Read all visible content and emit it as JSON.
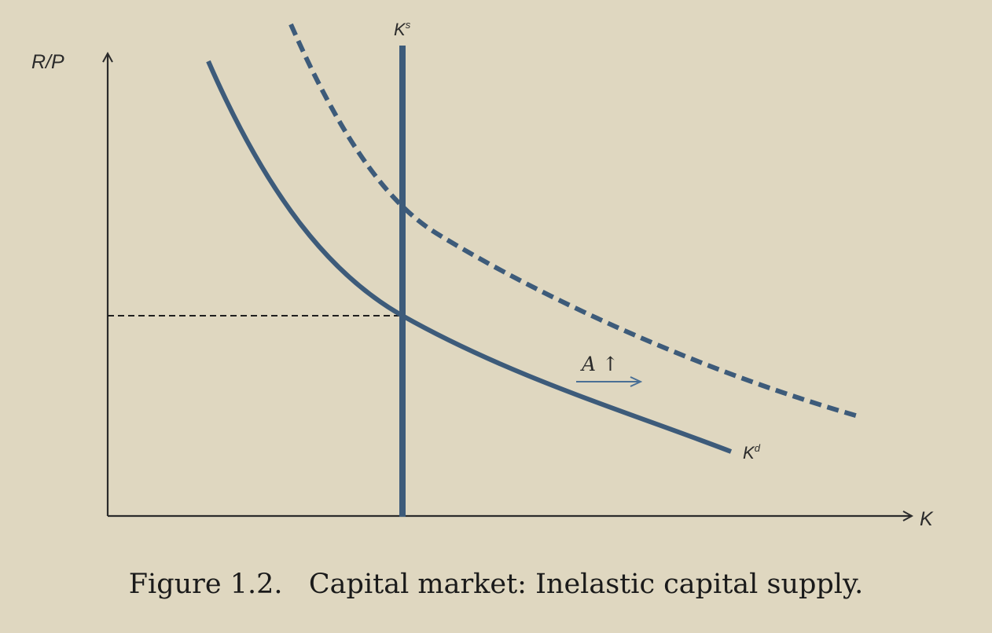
{
  "axes": {
    "y_label": "R/P",
    "x_label": "K"
  },
  "curves": {
    "supply_label_base": "K",
    "supply_label_sup": "s",
    "demand_label_base": "K",
    "demand_label_sup": "d"
  },
  "shift": {
    "label": "A ↑"
  },
  "caption": "Figure 1.2.   Capital market: Inelastic capital supply.",
  "colors": {
    "background": "#dfd7c0",
    "curve": "#3d5b7a",
    "axis": "#2b2b2b",
    "arrow": "#4a6f95"
  }
}
